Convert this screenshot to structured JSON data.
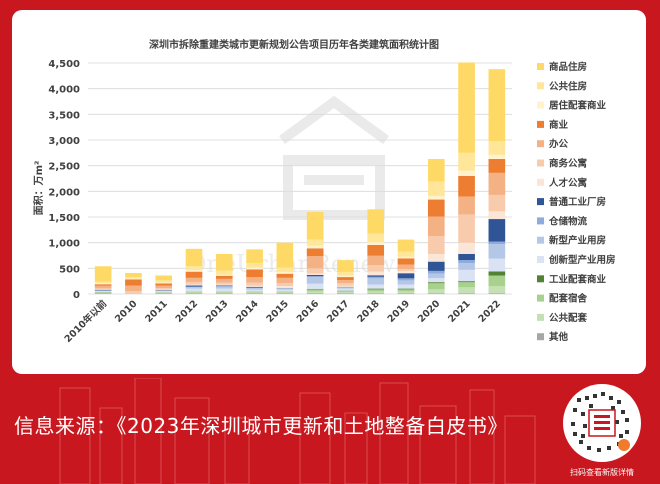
{
  "chart_data": {
    "type": "bar",
    "stacked": true,
    "title": "深圳市拆除重建类城市更新规划公告项目历年各类建筑面积统计图",
    "ylabel": "面积：万m²",
    "ylim": [
      0,
      4500
    ],
    "yticks": [
      "0",
      "500",
      "1,000",
      "1,500",
      "2,000",
      "2,500",
      "3,000",
      "3,500",
      "4,000",
      "4,500"
    ],
    "legend_position": "right",
    "watermark": "OneUrbanRenewal",
    "categories": [
      "2010年以前",
      "2010",
      "2011",
      "2012",
      "2013",
      "2014",
      "2015",
      "2016",
      "2017",
      "2018",
      "2019",
      "2020",
      "2021",
      "2022"
    ],
    "series": [
      {
        "name": "其他",
        "color": "#a6a6a6",
        "values": [
          10,
          5,
          10,
          10,
          10,
          10,
          10,
          10,
          10,
          10,
          10,
          10,
          10,
          10
        ]
      },
      {
        "name": "公共配套",
        "color": "#c5e0b4",
        "values": [
          15,
          10,
          15,
          20,
          20,
          20,
          20,
          40,
          30,
          40,
          40,
          80,
          120,
          140
        ]
      },
      {
        "name": "配套宿舍",
        "color": "#a9d18e",
        "values": [
          10,
          0,
          5,
          10,
          10,
          10,
          10,
          40,
          20,
          40,
          40,
          120,
          100,
          210
        ]
      },
      {
        "name": "工业配套商业",
        "color": "#548235",
        "values": [
          5,
          0,
          5,
          5,
          5,
          5,
          5,
          10,
          5,
          15,
          15,
          20,
          20,
          80
        ]
      },
      {
        "name": "创新型产业用房",
        "color": "#dae3f3",
        "values": [
          20,
          0,
          20,
          60,
          60,
          40,
          40,
          100,
          40,
          80,
          80,
          80,
          220,
          250
        ]
      },
      {
        "name": "新型产业用房",
        "color": "#b4c7e7",
        "values": [
          10,
          0,
          10,
          30,
          40,
          30,
          20,
          130,
          20,
          120,
          80,
          90,
          130,
          280
        ]
      },
      {
        "name": "仓储物流",
        "color": "#8faadc",
        "values": [
          0,
          0,
          0,
          10,
          10,
          10,
          5,
          20,
          10,
          30,
          40,
          50,
          60,
          50
        ]
      },
      {
        "name": "普通工业厂房",
        "color": "#2f5597",
        "values": [
          10,
          0,
          10,
          20,
          10,
          15,
          5,
          20,
          5,
          30,
          100,
          180,
          120,
          440
        ]
      },
      {
        "name": "人才公寓",
        "color": "#fbe5d6",
        "values": [
          0,
          0,
          10,
          20,
          20,
          20,
          40,
          30,
          20,
          70,
          40,
          150,
          220,
          150
        ]
      },
      {
        "name": "商务公寓",
        "color": "#f8cbad",
        "values": [
          30,
          40,
          30,
          50,
          40,
          60,
          60,
          100,
          50,
          130,
          40,
          350,
          550,
          320
        ]
      },
      {
        "name": "办公",
        "color": "#f4b183",
        "values": [
          50,
          110,
          50,
          80,
          70,
          110,
          100,
          240,
          60,
          180,
          90,
          380,
          350,
          430
        ]
      },
      {
        "name": "商业",
        "color": "#ed7d31",
        "values": [
          30,
          120,
          40,
          120,
          60,
          150,
          80,
          150,
          60,
          210,
          120,
          330,
          400,
          270
        ]
      },
      {
        "name": "居住配套商业",
        "color": "#fff2cc",
        "values": [
          20,
          15,
          20,
          30,
          20,
          30,
          30,
          50,
          30,
          50,
          30,
          70,
          100,
          80
        ]
      },
      {
        "name": "公共住房",
        "color": "#ffe699",
        "values": [
          30,
          30,
          40,
          80,
          80,
          90,
          90,
          120,
          70,
          170,
          100,
          280,
          350,
          270
        ]
      },
      {
        "name": "商品住房",
        "color": "#ffd966",
        "values": [
          300,
          80,
          95,
          335,
          325,
          270,
          485,
          540,
          230,
          475,
          235,
          440,
          1760,
          1400
        ]
      }
    ]
  },
  "footer": {
    "source": "信息来源：《2023年深圳城市更新和土地整备白皮书》",
    "qr_caption": "扫码查看新版详情"
  }
}
